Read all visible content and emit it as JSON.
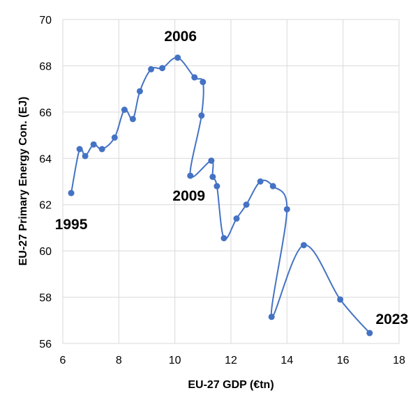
{
  "chart_data": {
    "type": "scatter",
    "xlabel": "EU-27 GDP (€tn)",
    "ylabel": "EU-27 Primary Energy Con. (EJ)",
    "xlim": [
      6,
      18
    ],
    "ylim": [
      56,
      70
    ],
    "xticks": [
      "6",
      "8",
      "10",
      "12",
      "14",
      "16",
      "18"
    ],
    "yticks": [
      "56",
      "58",
      "60",
      "62",
      "64",
      "66",
      "68",
      "70"
    ],
    "xtick_values": [
      6,
      8,
      10,
      12,
      14,
      16,
      18
    ],
    "ytick_values": [
      56,
      58,
      60,
      62,
      64,
      66,
      68,
      70
    ],
    "grid": true,
    "legend": "none",
    "colors": {
      "series": "#4472C4",
      "grid": "#D9D9D9"
    },
    "series": [
      {
        "x": [
          6.3,
          6.6,
          6.8,
          7.1,
          7.4,
          7.85,
          8.2,
          8.5,
          8.75,
          9.15,
          9.55,
          10.1,
          10.7,
          11.0,
          10.95,
          10.55,
          11.3,
          11.35,
          11.5,
          11.75,
          12.2,
          12.55,
          13.05,
          13.5,
          14.0,
          13.45,
          14.6,
          15.9,
          16.95
        ],
        "y": [
          62.5,
          64.4,
          64.1,
          64.6,
          64.4,
          64.9,
          66.1,
          65.7,
          66.9,
          67.85,
          67.9,
          68.35,
          67.5,
          67.3,
          65.85,
          63.25,
          63.9,
          63.2,
          62.8,
          60.55,
          61.4,
          62.0,
          63.0,
          62.8,
          61.8,
          57.15,
          60.25,
          57.9,
          56.45
        ]
      }
    ],
    "annotations": [
      {
        "text": "1995",
        "x": 6.3,
        "y": 62.5
      },
      {
        "text": "2006",
        "x": 10.1,
        "y": 68.35
      },
      {
        "text": "2009",
        "x": 10.55,
        "y": 63.25
      },
      {
        "text": "2023",
        "x": 16.95,
        "y": 56.45
      }
    ]
  }
}
